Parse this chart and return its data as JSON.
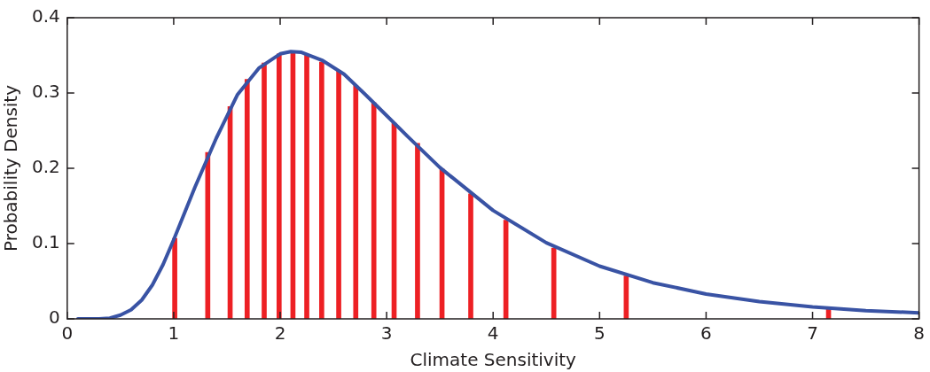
{
  "chart_data": {
    "type": "line",
    "xlabel": "Climate Sensitivity",
    "ylabel": "Probability Density",
    "xlim": [
      0,
      8
    ],
    "xticks": [
      0,
      1,
      2,
      3,
      4,
      5,
      6,
      7,
      8
    ],
    "ylim": [
      0,
      0.4
    ],
    "yticks": [
      0,
      0.1,
      0.2,
      0.3,
      0.4
    ],
    "grid": false,
    "legend": false,
    "marker": "none",
    "line_style": "solid",
    "series": [
      {
        "color": "#3953a4",
        "x": [
          0.1,
          0.3,
          0.4,
          0.5,
          0.6,
          0.7,
          0.8,
          0.9,
          1.0,
          1.2,
          1.4,
          1.6,
          1.8,
          2.0,
          2.1,
          2.2,
          2.4,
          2.6,
          2.8,
          3.0,
          3.2,
          3.5,
          4.0,
          4.5,
          5.0,
          5.5,
          6.0,
          6.5,
          7.0,
          7.5,
          8.0
        ],
        "values": [
          0,
          0,
          0.001,
          0.005,
          0.012,
          0.025,
          0.045,
          0.072,
          0.105,
          0.175,
          0.24,
          0.298,
          0.333,
          0.352,
          0.355,
          0.354,
          0.343,
          0.325,
          0.298,
          0.27,
          0.242,
          0.201,
          0.144,
          0.101,
          0.07,
          0.048,
          0.033,
          0.023,
          0.016,
          0.011,
          0.008
        ]
      },
      {
        "type": "bar",
        "color": "#ed2024",
        "x": [
          1.01,
          1.32,
          1.53,
          1.69,
          1.85,
          1.99,
          2.12,
          2.25,
          2.39,
          2.55,
          2.71,
          2.88,
          3.07,
          3.29,
          3.52,
          3.79,
          4.12,
          4.57,
          5.25,
          7.15
        ],
        "values": [
          0.107,
          0.221,
          0.282,
          0.318,
          0.34,
          0.352,
          0.355,
          0.351,
          0.341,
          0.33,
          0.31,
          0.287,
          0.26,
          0.233,
          0.199,
          0.166,
          0.131,
          0.094,
          0.057,
          0.013
        ]
      }
    ]
  }
}
